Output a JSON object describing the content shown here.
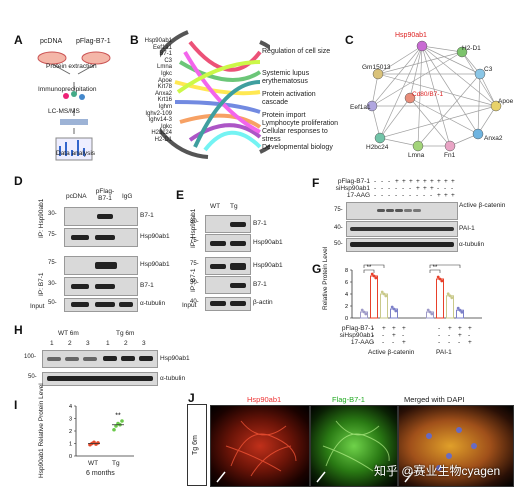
{
  "panelA": {
    "label": "A",
    "col1": "pcDNA",
    "col2": "pFlag-B7-1",
    "steps": [
      "Protein extraction",
      "Immunoprecipitation",
      "LC-MS/MS",
      "Data analysis"
    ]
  },
  "panelB": {
    "label": "B",
    "proteins": [
      "Hsp90ab1",
      "Eef1a1",
      "B7-1",
      "C3",
      "Lmna",
      "Igkc",
      "Apoe",
      "Krt78",
      "Anxa2",
      "Krt16",
      "Ighm",
      "Ighv2-109",
      "Ighv14-3",
      "Igkc",
      "H2bc24",
      "H2-D1"
    ],
    "terms": [
      "Regulation of cell size",
      "Systemic lupus erythematosus",
      "Protein activation cascade",
      "Protein import",
      "Lymphocyte proliferation",
      "Cellular responses to stress",
      "Developmental biology"
    ]
  },
  "panelC": {
    "label": "C",
    "nodes": [
      "Hsp90ab1",
      "Gm15013",
      "H2-D1",
      "C3",
      "Eef1a1",
      "Cd80/B7-1",
      "Apoe",
      "Anxa2",
      "H2bc24",
      "Lmna",
      "Fn1"
    ]
  },
  "panelD": {
    "label": "D",
    "cols": [
      "pcDNA",
      "pFlag-B7-1",
      "IgG"
    ],
    "row_groups": [
      "IP: Hsp90ab1",
      "IP: B7-1",
      "Input"
    ],
    "bands": [
      "B7-1",
      "Hsp90ab1",
      "Hsp90ab1",
      "B7-1",
      "α-tubulin"
    ],
    "mw": [
      "30-",
      "75-",
      "75-",
      "30-",
      "50-"
    ]
  },
  "panelE": {
    "label": "E",
    "cols": [
      "WT",
      "Tg"
    ],
    "row_groups": [
      "IP: Hsp90ab1",
      "IP: B7-1",
      "Input"
    ],
    "bands": [
      "B7-1",
      "Hsp90ab1",
      "Hsp90ab1",
      "B7-1",
      "β-actin"
    ],
    "mw": [
      "30-",
      "75-",
      "75-",
      "30-",
      "40-"
    ]
  },
  "panelF": {
    "label": "F",
    "conditions": [
      "pFlag-B7-1",
      "siHsp90ab1",
      "17-AAG"
    ],
    "signs": [
      [
        "-",
        "-",
        "-",
        "+",
        "+",
        "+",
        "+",
        "+",
        "+",
        "+",
        "+",
        "+"
      ],
      [
        "-",
        "-",
        "-",
        "-",
        "-",
        "-",
        "+",
        "+",
        "+",
        "-",
        "-",
        "-"
      ],
      [
        "-",
        "-",
        "-",
        "-",
        "-",
        "-",
        "-",
        "-",
        "-",
        "+",
        "+",
        "+"
      ]
    ],
    "bands": [
      "Active β-catenin",
      "PAI-1",
      "α-tubulin"
    ],
    "mw": [
      "75-",
      "40-",
      "50-"
    ]
  },
  "panelG": {
    "label": "G",
    "ylabel": "Relative Protein Level",
    "yticks": [
      "0",
      "2",
      "4",
      "6",
      "8"
    ],
    "groups": [
      "Active β-catenin",
      "PAI-1"
    ],
    "conditions": [
      "pFlag-B7-1",
      "siHsp90ab1",
      "17-AAG"
    ],
    "signs": [
      [
        "-",
        "+",
        "+",
        "+"
      ],
      [
        "-",
        "-",
        "+",
        "-"
      ],
      [
        "-",
        "-",
        "-",
        "+"
      ]
    ],
    "sig": [
      "**",
      "*",
      "**",
      "**"
    ]
  },
  "panelH": {
    "label": "H",
    "groups": [
      "WT 6m",
      "Tg 6m"
    ],
    "lanes": [
      "1",
      "2",
      "3",
      "1",
      "2",
      "3"
    ],
    "bands": [
      "Hsp90ab1",
      "α-tubulin"
    ],
    "mw": [
      "100-",
      "50-"
    ]
  },
  "panelI": {
    "label": "I",
    "ylabel": "Hsp90ab1 Relative Protein Level",
    "yticks": [
      "0",
      "1",
      "2",
      "3",
      "4"
    ],
    "categories": [
      "WT",
      "Tg"
    ],
    "xlabel": "6 months",
    "sig": "**"
  },
  "panelJ": {
    "label": "J",
    "row_label": "Tg 6m",
    "titles": [
      "Hsp90ab1",
      "Flag-B7-1",
      "Merged with DAPI"
    ],
    "watermark": "知乎 @赛业生物cyagen"
  },
  "chart_data": [
    {
      "type": "bar",
      "title": "",
      "ylabel": "Relative Protein Level",
      "ylim": [
        0,
        8
      ],
      "categories": [
        "Active β-catenin 1",
        "Active β-catenin 2",
        "Active β-catenin 3",
        "Active β-catenin 4",
        "PAI-1 1",
        "PAI-1 2",
        "PAI-1 3",
        "PAI-1 4"
      ],
      "values": [
        1.0,
        7.0,
        4.0,
        1.5,
        1.0,
        6.5,
        3.7,
        1.3
      ],
      "colors": [
        "#9e9ac8",
        "#e8402a",
        "#c9c98a",
        "#7b7fc8",
        "#9e9ac8",
        "#e8402a",
        "#c9c98a",
        "#7b7fc8"
      ]
    },
    {
      "type": "scatter",
      "title": "",
      "ylabel": "Hsp90ab1 Relative Protein Level",
      "ylim": [
        0,
        4
      ],
      "categories": [
        "WT",
        "Tg"
      ],
      "means": [
        1.0,
        2.5
      ],
      "points": [
        [
          0.9,
          1.0,
          1.1,
          0.95,
          1.05
        ],
        [
          2.1,
          2.4,
          2.6,
          2.5,
          2.8
        ]
      ]
    }
  ]
}
